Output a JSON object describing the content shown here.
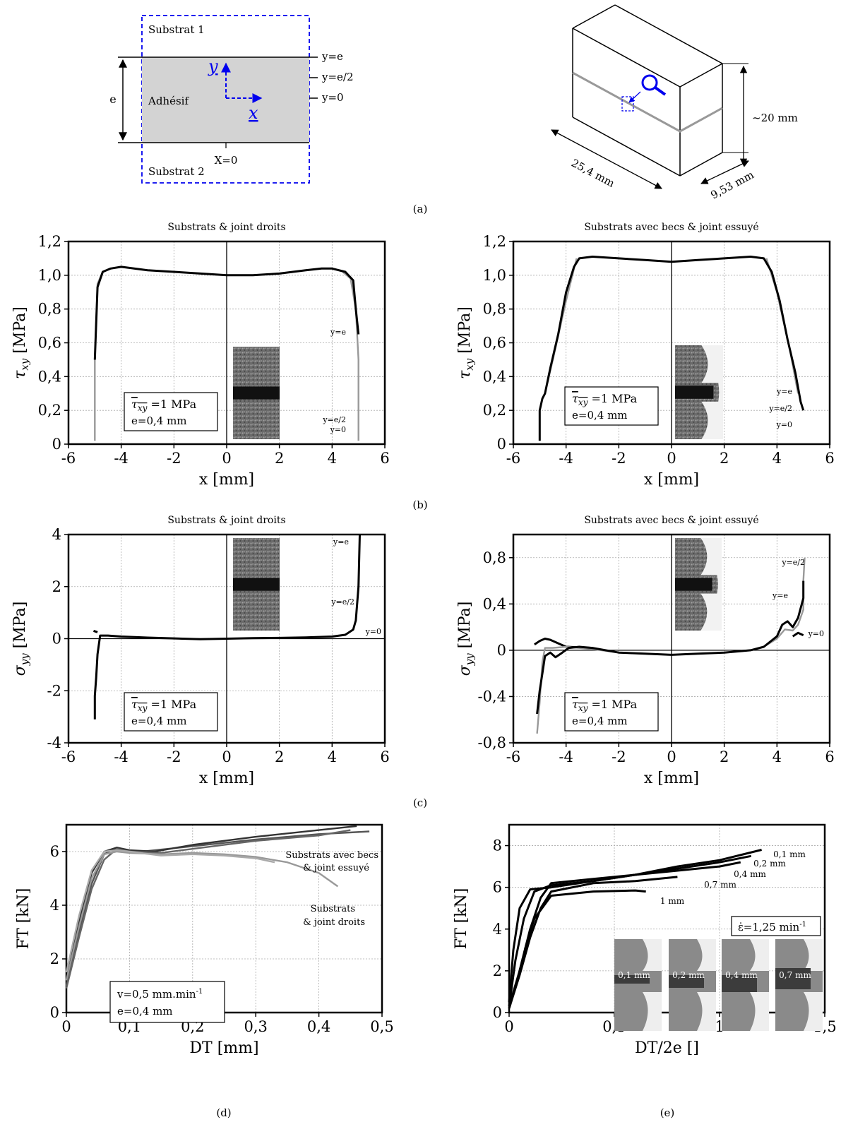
{
  "panel_labels": {
    "a": "(a)",
    "b": "(b)",
    "c": "(c)",
    "d": "(d)",
    "e": "(e)"
  },
  "schematic": {
    "substrate_top": "Substrat 1",
    "substrate_bottom": "Substrat 2",
    "adhesive": "Adhésif",
    "thickness": "e",
    "y_labels": [
      "y=e",
      "y=e/2",
      "y=0"
    ],
    "x_origin": "X=0",
    "axis_x": "x",
    "axis_y": "y"
  },
  "specimen": {
    "height": "~20 mm",
    "length": "25,4 mm",
    "width": "9,53 mm"
  },
  "colors": {
    "dark": "#000000",
    "gray": "#999999",
    "blue": "#0000ee",
    "adhesive": "#d3d3d3"
  },
  "chart_data": [
    {
      "id": "b-left",
      "type": "line",
      "title": "Substrats & joint droits",
      "xlabel": "x [mm]",
      "ylabel": "τxy [MPa]",
      "xlim": [
        -6,
        6
      ],
      "ylim": [
        0,
        1.2
      ],
      "xticks": [
        "-6",
        "-4",
        "-2",
        "0",
        "2",
        "4",
        "6"
      ],
      "yticks": [
        "0",
        "0,2",
        "0,4",
        "0,6",
        "0,8",
        "1,0",
        "1,2"
      ],
      "legend": [
        "τxy =1 MPa",
        "e=0,4 mm"
      ],
      "curve_labels": [
        "y=e",
        "y=e/2",
        "y=0"
      ],
      "series": [
        {
          "color": "#999999",
          "x": [
            -5,
            -5,
            -4.9,
            -4.7,
            -4.4
          ],
          "y": [
            0.02,
            0.5,
            0.95,
            1.02,
            1.04
          ]
        },
        {
          "color": "#999999",
          "x": [
            4.4,
            4.7,
            4.9,
            5,
            5
          ],
          "y": [
            1.02,
            0.98,
            0.8,
            0.5,
            0.02
          ]
        },
        {
          "color": "#000000",
          "x": [
            -5,
            -4.9,
            -4.7,
            -4.4,
            -4,
            -3,
            -2,
            -1,
            0,
            1,
            2,
            3,
            3.6,
            4,
            4.5,
            4.8,
            4.9,
            5
          ],
          "y": [
            0.5,
            0.93,
            1.02,
            1.04,
            1.05,
            1.03,
            1.02,
            1.01,
            1.0,
            1.0,
            1.01,
            1.03,
            1.04,
            1.04,
            1.02,
            0.97,
            0.8,
            0.65
          ]
        }
      ]
    },
    {
      "id": "b-right",
      "type": "line",
      "title": "Substrats avec becs & joint essuyé",
      "xlabel": "x [mm]",
      "ylabel": "τxy [MPa]",
      "xlim": [
        -6,
        6
      ],
      "ylim": [
        0,
        1.2
      ],
      "xticks": [
        "-6",
        "-4",
        "-2",
        "0",
        "2",
        "4",
        "6"
      ],
      "yticks": [
        "0",
        "0,2",
        "0,4",
        "0,6",
        "0,8",
        "1,0",
        "1,2"
      ],
      "legend": [
        "τxy =1 MPa",
        "e=0,4 mm"
      ],
      "curve_labels": [
        "y=e",
        "y=e/2",
        "y=0"
      ],
      "series": [
        {
          "color": "#999999",
          "x": [
            -4.8,
            -4.5,
            -4,
            -3.6
          ],
          "y": [
            0.3,
            0.5,
            0.85,
            1.1
          ]
        },
        {
          "color": "#999999",
          "x": [
            3.6,
            4,
            4.5,
            4.8
          ],
          "y": [
            1.1,
            0.9,
            0.55,
            0.3
          ]
        },
        {
          "color": "#000000",
          "x": [
            -5,
            -5,
            -4.9,
            -4.8,
            -4.6,
            -4.3,
            -4,
            -3.7,
            -3.5,
            -3,
            -2,
            -1,
            0,
            1,
            2,
            3,
            3.5,
            3.8,
            4.1,
            4.4,
            4.7,
            4.9,
            5
          ],
          "y": [
            0.02,
            0.2,
            0.27,
            0.3,
            0.45,
            0.65,
            0.9,
            1.05,
            1.1,
            1.11,
            1.1,
            1.09,
            1.08,
            1.09,
            1.1,
            1.11,
            1.1,
            1.02,
            0.85,
            0.62,
            0.42,
            0.25,
            0.2
          ]
        }
      ]
    },
    {
      "id": "c-left",
      "type": "line",
      "title": "Substrats & joint droits",
      "xlabel": "x [mm]",
      "ylabel": "σyy [MPa]",
      "xlim": [
        -6,
        6
      ],
      "ylim": [
        -4,
        4
      ],
      "xticks": [
        "-6",
        "-4",
        "-2",
        "0",
        "2",
        "4",
        "6"
      ],
      "yticks": [
        "-4",
        "-2",
        "0",
        "2",
        "4"
      ],
      "legend": [
        "τxy =1 MPa",
        "e=0,4 mm"
      ],
      "curve_labels": [
        "y=e",
        "y=e/2",
        "y=0"
      ],
      "series": [
        {
          "color": "#000000",
          "x": [
            -5,
            -5,
            -4.95,
            -4.9,
            -4.8,
            -4.5,
            -4,
            -3,
            -2,
            -1,
            0,
            1,
            2,
            3,
            4,
            4.5,
            4.8,
            4.9,
            5,
            5.05
          ],
          "y": [
            -3.1,
            -2.2,
            -1.5,
            -0.6,
            0.12,
            0.12,
            0.08,
            0.04,
            0.01,
            -0.02,
            0,
            0.02,
            0.03,
            0.05,
            0.08,
            0.15,
            0.35,
            0.7,
            2.0,
            4.0
          ]
        },
        {
          "color": "#000000",
          "x": [
            -5.05,
            -4.9
          ],
          "y": [
            0.3,
            0.25
          ]
        }
      ]
    },
    {
      "id": "c-right",
      "type": "line",
      "title": "Substrats avec becs & joint essuyé",
      "xlabel": "x [mm]",
      "ylabel": "σyy [MPa]",
      "xlim": [
        -6,
        6
      ],
      "ylim": [
        -0.8,
        1.0
      ],
      "xticks": [
        "-6",
        "-4",
        "-2",
        "0",
        "2",
        "4",
        "6"
      ],
      "yticks": [
        "-0,8",
        "-0,4",
        "0",
        "0,4",
        "0,8"
      ],
      "legend": [
        "τxy =1 MPa",
        "e=0,4 mm"
      ],
      "curve_labels": [
        "y=e/2",
        "y=e",
        "y=0"
      ],
      "series": [
        {
          "color": "#000000",
          "x": [
            -5.2,
            -5,
            -4.8,
            -4.6,
            -4.2,
            -4,
            -3
          ],
          "y": [
            0.05,
            0.08,
            0.1,
            0.09,
            0.05,
            0.03,
            0.02
          ]
        },
        {
          "color": "#999999",
          "x": [
            -5.1,
            -5,
            -4.9,
            -4.8,
            -4.5,
            -4,
            -3,
            -2,
            -1,
            0,
            1,
            2,
            3,
            3.5,
            4,
            4.3,
            4.6,
            4.8,
            5,
            5,
            5.05
          ],
          "y": [
            -0.72,
            -0.45,
            -0.1,
            0.02,
            0.02,
            0.03,
            0.01,
            -0.02,
            -0.03,
            -0.04,
            -0.03,
            -0.02,
            0.0,
            0.03,
            0.1,
            0.18,
            0.17,
            0.22,
            0.35,
            0.6,
            0.8
          ]
        },
        {
          "color": "#000000",
          "x": [
            -5.1,
            -5,
            -4.9,
            -4.8,
            -4.6,
            -4.4,
            -4.2,
            -3.9,
            -3.5,
            -3,
            -2,
            -1,
            0,
            1,
            2,
            3,
            3.5,
            4,
            4.2,
            4.4,
            4.6,
            4.8,
            5,
            5
          ],
          "y": [
            -0.55,
            -0.35,
            -0.2,
            -0.05,
            -0.02,
            -0.06,
            -0.03,
            0.02,
            0.03,
            0.02,
            -0.02,
            -0.03,
            -0.04,
            -0.03,
            -0.02,
            0.0,
            0.03,
            0.12,
            0.22,
            0.25,
            0.2,
            0.28,
            0.45,
            0.6
          ]
        },
        {
          "color": "#000000",
          "x": [
            4.6,
            4.8,
            5
          ],
          "y": [
            0.12,
            0.15,
            0.13
          ]
        }
      ]
    },
    {
      "id": "d",
      "type": "line",
      "xlabel": "DT [mm]",
      "ylabel": "FT [kN]",
      "xlim": [
        0,
        0.5
      ],
      "ylim": [
        0,
        7
      ],
      "xticks": [
        "0",
        "0,1",
        "0,2",
        "0,3",
        "0,4",
        "0,5"
      ],
      "yticks": [
        "0",
        "2",
        "4",
        "6"
      ],
      "legend": [
        "v=0,5 mm.min-1",
        "e=0,4 mm"
      ],
      "curve_labels": [
        "Substrats avec becs",
        "& joint essuyé",
        "Substrats",
        "& joint droits"
      ],
      "series": [
        {
          "color": "#555555",
          "x": [
            0,
            0.02,
            0.04,
            0.06,
            0.075,
            0.09,
            0.12,
            0.2,
            0.3,
            0.4,
            0.48
          ],
          "y": [
            1.0,
            3.0,
            4.8,
            5.9,
            6.1,
            6.05,
            6.0,
            6.2,
            6.45,
            6.65,
            6.75
          ]
        },
        {
          "color": "#333333",
          "x": [
            0,
            0.02,
            0.04,
            0.06,
            0.08,
            0.1,
            0.14,
            0.2,
            0.3,
            0.4,
            0.46
          ],
          "y": [
            1.2,
            3.4,
            5.2,
            6.0,
            6.15,
            6.05,
            6.0,
            6.25,
            6.55,
            6.8,
            6.95
          ]
        },
        {
          "color": "#666666",
          "x": [
            0,
            0.02,
            0.04,
            0.06,
            0.08,
            0.1,
            0.15,
            0.2,
            0.3,
            0.4,
            0.45
          ],
          "y": [
            0.9,
            2.8,
            4.6,
            5.7,
            6.1,
            6.0,
            5.95,
            6.1,
            6.4,
            6.6,
            6.8
          ]
        },
        {
          "color": "#999999",
          "x": [
            0,
            0.02,
            0.04,
            0.06,
            0.08,
            0.1,
            0.15,
            0.2,
            0.25,
            0.3,
            0.35,
            0.4,
            0.43
          ],
          "y": [
            1.2,
            3.2,
            5.0,
            5.9,
            6.0,
            5.95,
            5.9,
            5.95,
            5.9,
            5.8,
            5.6,
            5.2,
            4.7
          ]
        },
        {
          "color": "#aaaaaa",
          "x": [
            0,
            0.02,
            0.04,
            0.06,
            0.08,
            0.1,
            0.15,
            0.2,
            0.25,
            0.3,
            0.33
          ],
          "y": [
            1.5,
            3.6,
            5.3,
            6.0,
            6.05,
            6.0,
            5.85,
            5.9,
            5.85,
            5.75,
            5.6
          ]
        }
      ]
    },
    {
      "id": "e",
      "type": "line",
      "xlabel": "DT/2e []",
      "ylabel": "FT [kN]",
      "xlim": [
        0,
        1.5
      ],
      "ylim": [
        0,
        9
      ],
      "xticks": [
        "0",
        "0,5",
        "1",
        "1,5"
      ],
      "yticks": [
        "0",
        "2",
        "4",
        "6",
        "8"
      ],
      "legend": [
        "ε̇=1,25 min-1"
      ],
      "curve_labels": [
        "0,1 mm",
        "0,2 mm",
        "0,4 mm",
        "0,7 mm",
        "1 mm"
      ],
      "series": [
        {
          "color": "#000000",
          "x": [
            0,
            0.02,
            0.05,
            0.1,
            0.2,
            0.4,
            0.6,
            0.8,
            1.0,
            1.2
          ],
          "y": [
            0.5,
            3.0,
            5.0,
            5.9,
            6.0,
            6.3,
            6.6,
            7.0,
            7.3,
            7.8
          ]
        },
        {
          "color": "#000000",
          "x": [
            0,
            0.03,
            0.07,
            0.12,
            0.2,
            0.4,
            0.6,
            0.8,
            1.0,
            1.15
          ],
          "y": [
            0.3,
            2.5,
            4.5,
            5.8,
            6.1,
            6.3,
            6.6,
            6.9,
            7.2,
            7.5
          ]
        },
        {
          "color": "#000000",
          "x": [
            0,
            0.05,
            0.1,
            0.15,
            0.2,
            0.4,
            0.6,
            0.8,
            1.0,
            1.1
          ],
          "y": [
            0.3,
            2.0,
            4.0,
            5.5,
            6.2,
            6.4,
            6.6,
            6.8,
            7.0,
            7.2
          ]
        },
        {
          "color": "#000000",
          "x": [
            0,
            0.05,
            0.1,
            0.15,
            0.2,
            0.4,
            0.6,
            0.8
          ],
          "y": [
            0.2,
            1.8,
            3.6,
            5.0,
            5.8,
            6.2,
            6.3,
            6.5
          ]
        },
        {
          "color": "#000000",
          "x": [
            0,
            0.04,
            0.08,
            0.12,
            0.2,
            0.4,
            0.6,
            0.65
          ],
          "y": [
            0.2,
            1.6,
            3.2,
            4.5,
            5.6,
            5.8,
            5.85,
            5.8
          ]
        }
      ]
    }
  ],
  "insets_e": [
    "0,1 mm",
    "0,2 mm",
    "0,4 mm",
    "0,7 mm"
  ]
}
